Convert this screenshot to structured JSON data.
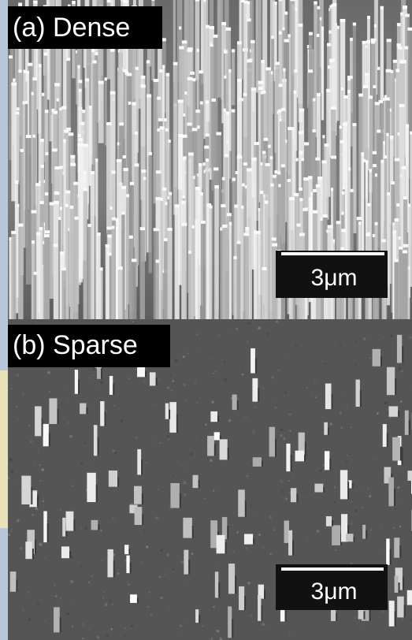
{
  "panels": [
    {
      "label": "(a) Dense",
      "scale_bar": "3μm"
    },
    {
      "label": "(b) Sparse",
      "scale_bar": "3μm"
    }
  ]
}
